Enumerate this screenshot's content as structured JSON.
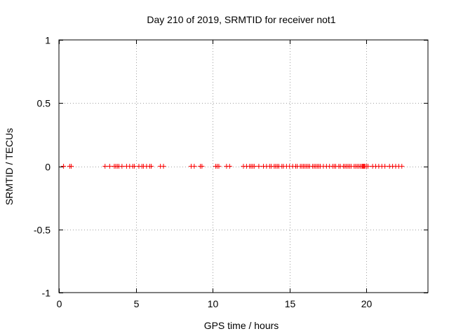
{
  "chart_data": {
    "type": "scatter",
    "title": "Day 210 of 2019, SRMTID for receiver not1",
    "xlabel": "GPS time / hours",
    "ylabel": "SRMTID / TECUs",
    "xlim": [
      0,
      24
    ],
    "ylim": [
      -1,
      1
    ],
    "grid": true,
    "marker": "+",
    "marker_color": "#ff0000",
    "x_ticks": [
      0,
      5,
      10,
      15,
      20
    ],
    "x_tick_labels": [
      "0",
      "5",
      "10",
      "15",
      "20"
    ],
    "y_ticks": [
      -1,
      -0.5,
      0,
      0.5,
      1
    ],
    "y_tick_labels": [
      "-1",
      "-0.5",
      "0",
      "0.5",
      "1"
    ],
    "series": [
      {
        "name": "SRMTID",
        "x": [
          0.3,
          0.7,
          0.8,
          3.0,
          3.3,
          3.6,
          3.7,
          3.8,
          3.9,
          4.1,
          4.4,
          4.6,
          4.8,
          4.9,
          5.2,
          5.4,
          5.5,
          5.7,
          5.9,
          6.0,
          6.6,
          6.8,
          8.6,
          8.8,
          9.2,
          9.3,
          10.2,
          10.3,
          10.4,
          10.9,
          11.1,
          12.0,
          12.2,
          12.4,
          12.5,
          12.6,
          12.7,
          13.0,
          13.3,
          13.5,
          13.7,
          13.8,
          14.0,
          14.1,
          14.2,
          14.3,
          14.5,
          14.6,
          14.8,
          15.0,
          15.2,
          15.4,
          15.5,
          15.7,
          15.8,
          15.9,
          16.0,
          16.1,
          16.2,
          16.3,
          16.5,
          16.6,
          16.7,
          16.8,
          16.9,
          17.0,
          17.2,
          17.4,
          17.6,
          17.8,
          17.9,
          18.0,
          18.2,
          18.3,
          18.5,
          18.6,
          18.7,
          18.8,
          18.9,
          19.0,
          19.2,
          19.3,
          19.4,
          19.5,
          19.6,
          19.7,
          19.75,
          19.8,
          19.85,
          19.9,
          20.0,
          20.1,
          20.4,
          20.6,
          20.8,
          21.0,
          21.2,
          21.5,
          21.7,
          21.9,
          22.1,
          22.3
        ],
        "y": [
          0,
          0,
          0,
          0,
          0,
          0,
          0,
          0,
          0,
          0,
          0,
          0,
          0,
          0,
          0,
          0,
          0,
          0,
          0,
          0,
          0,
          0,
          0,
          0,
          0,
          0,
          0,
          0,
          0,
          0,
          0,
          0,
          0,
          0,
          0,
          0,
          0,
          0,
          0,
          0,
          0,
          0,
          0,
          0,
          0,
          0,
          0,
          0,
          0,
          0,
          0,
          0,
          0,
          0,
          0,
          0,
          0,
          0,
          0,
          0,
          0,
          0,
          0,
          0,
          0,
          0,
          0,
          0,
          0,
          0,
          0,
          0,
          0,
          0,
          0,
          0,
          0,
          0,
          0,
          0,
          0,
          0,
          0,
          0,
          0,
          0,
          0,
          0,
          0,
          0,
          0,
          0,
          0,
          0,
          0,
          0,
          0,
          0,
          0,
          0,
          0,
          0
        ]
      }
    ]
  }
}
